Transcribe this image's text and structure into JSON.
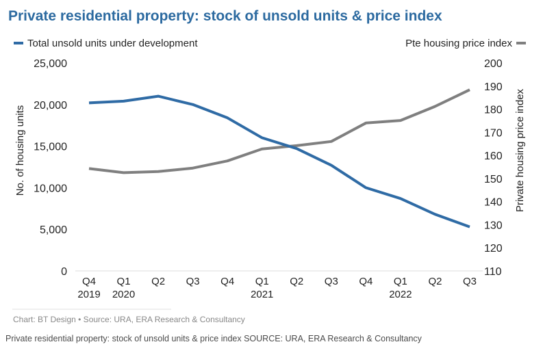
{
  "caption": "Private residential property: stock of unsold units & price index SOURCE: URA, ERA Research & Consultancy",
  "chart_data": {
    "type": "line",
    "title": "Private residential property: stock of unsold units & price index",
    "credit": "Chart: BT Design • Source: URA, ERA Research & Consultancy",
    "x_categories": [
      {
        "quarter": "Q4",
        "year": "2019"
      },
      {
        "quarter": "Q1",
        "year": "2020"
      },
      {
        "quarter": "Q2",
        "year": ""
      },
      {
        "quarter": "Q3",
        "year": ""
      },
      {
        "quarter": "Q4",
        "year": ""
      },
      {
        "quarter": "Q1",
        "year": "2021"
      },
      {
        "quarter": "Q2",
        "year": ""
      },
      {
        "quarter": "Q3",
        "year": ""
      },
      {
        "quarter": "Q4",
        "year": ""
      },
      {
        "quarter": "Q1",
        "year": "2022"
      },
      {
        "quarter": "Q2",
        "year": ""
      },
      {
        "quarter": "Q3",
        "year": ""
      }
    ],
    "y_left": {
      "label": "No. of housing units",
      "min": 0,
      "max": 25000,
      "ticks": [
        0,
        5000,
        10000,
        15000,
        20000,
        25000
      ],
      "tick_labels": [
        "0",
        "5,000",
        "10,000",
        "15,000",
        "20,000",
        "25,000"
      ]
    },
    "y_right": {
      "label": "Private housing price index",
      "min": 110,
      "max": 200,
      "ticks": [
        110,
        120,
        130,
        140,
        150,
        160,
        170,
        180,
        190,
        200
      ],
      "tick_labels": [
        "110",
        "120",
        "130",
        "140",
        "150",
        "160",
        "170",
        "180",
        "190",
        "200"
      ]
    },
    "series": [
      {
        "name": "Total unsold units under development",
        "axis": "left",
        "color": "#2f6ba5",
        "values": [
          20200,
          20400,
          21000,
          20000,
          18400,
          16000,
          14700,
          12700,
          10000,
          8700,
          6800,
          5300
        ]
      },
      {
        "name": "Pte housing price index",
        "axis": "right",
        "color": "#7f7f7f",
        "values": [
          154.3,
          152.5,
          153.0,
          154.5,
          157.6,
          162.8,
          164.2,
          166.0,
          174.0,
          175.1,
          181.2,
          188.4
        ]
      }
    ],
    "grid": false,
    "legend_position": "top"
  }
}
